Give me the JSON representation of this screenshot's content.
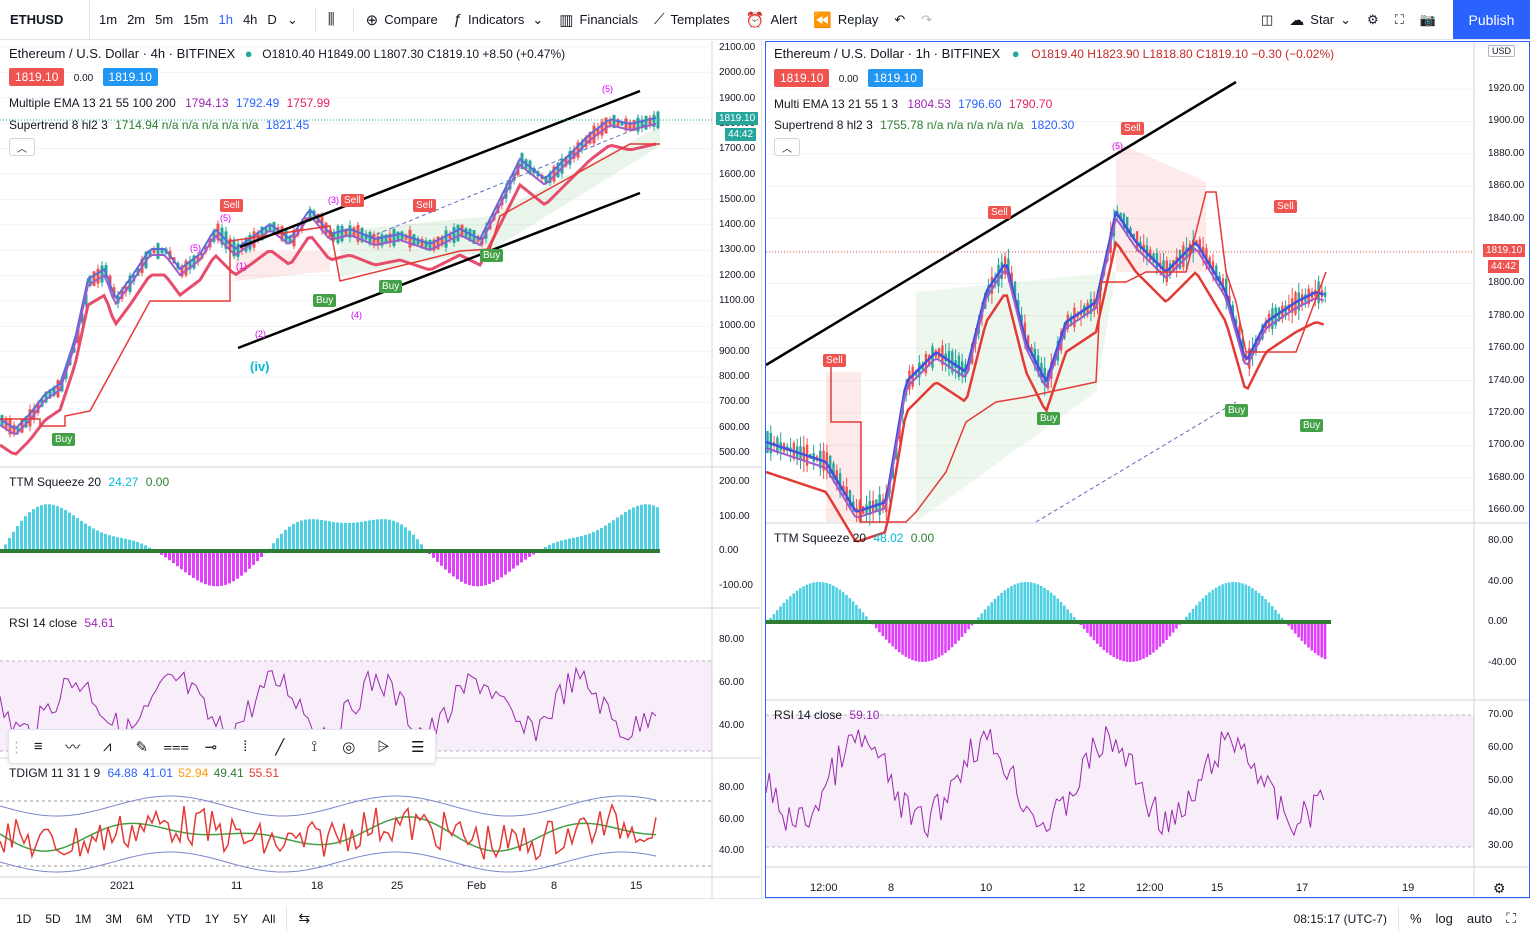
{
  "toolbar": {
    "symbol": "ETHUSD",
    "timeframes": [
      "1m",
      "2m",
      "5m",
      "15m",
      "1h",
      "4h",
      "D"
    ],
    "active_timeframe": "1h",
    "compare": "Compare",
    "indicators": "Indicators",
    "financials": "Financials",
    "templates": "Templates",
    "alert": "Alert",
    "replay": "Replay",
    "star": "Star",
    "publish": "Publish"
  },
  "left": {
    "title": "Ethereum / U.S. Dollar · 4h · BITFINEX",
    "ohlc": "O1810.40 H1849.00 L1807.30 C1819.10 +8.50 (+0.47%)",
    "bid": "1819.10",
    "spread": "0.00",
    "ask": "1819.10",
    "ema_label": "Multiple EMA 13 21 55 100 200",
    "ema_vals": [
      "1794.13",
      "1792.49",
      "1757.99"
    ],
    "st_label": "Supertrend 8 hl2 3",
    "st_vals": "1714.94  n/a  n/a  n/a  n/a  n/a",
    "st_last": "1821.45",
    "price_axis": [
      "2100.00",
      "2000.00",
      "1900.00",
      "1800.00",
      "1700.00",
      "1600.00",
      "1500.00",
      "1400.00",
      "1300.00",
      "1200.00",
      "1100.00",
      "1000.00",
      "900.00",
      "800.00",
      "700.00",
      "600.00",
      "500.00"
    ],
    "price_tag": "1819.10",
    "time_tag": "44:42",
    "ttm_label": "TTM Squeeze 20",
    "ttm_v1": "24.27",
    "ttm_v2": "0.00",
    "ttm_axis": [
      "200.00",
      "100.00",
      "0.00",
      "-100.00"
    ],
    "rsi_label": "RSI 14 close",
    "rsi_val": "54.61",
    "rsi_axis": [
      "80.00",
      "60.00",
      "40.00"
    ],
    "tdi_label": "TDIGM 11 31 1 9",
    "tdi_vals": [
      "64.88",
      "41.01",
      "52.94",
      "49.41",
      "55.51"
    ],
    "tdi_axis": [
      "80.00",
      "60.00",
      "40.00"
    ],
    "dates": [
      "2021",
      "11",
      "18",
      "25",
      "Feb",
      "8",
      "15"
    ],
    "wave_labels": [
      "(5)",
      "(iv)",
      "(1)",
      "(2)",
      "(3)",
      "(4)",
      "(5)",
      "(5)"
    ],
    "signals": [
      "Buy",
      "Sell",
      "Buy",
      "Buy",
      "Sell",
      "Sell",
      "Buy"
    ]
  },
  "right": {
    "title": "Ethereum / U.S. Dollar · 1h · BITFINEX",
    "ohlc": "O1819.40 H1823.90 L1818.80 C1819.10 −0.30 (−0.02%)",
    "bid": "1819.10",
    "spread": "0.00",
    "ask": "1819.10",
    "ema_label": "Multi EMA 13 21 55 1 3",
    "ema_vals": [
      "1804.53",
      "1796.60",
      "1790.70"
    ],
    "st_label": "Supertrend 8 hl2 3",
    "st_vals": "1755.78  n/a  n/a  n/a  n/a  n/a",
    "st_last": "1820.30",
    "currency": "USD",
    "price_axis": [
      "1920.00",
      "1900.00",
      "1880.00",
      "1860.00",
      "1840.00",
      "1820.00",
      "1800.00",
      "1780.00",
      "1760.00",
      "1740.00",
      "1720.00",
      "1700.00",
      "1680.00",
      "1660.00"
    ],
    "price_tag": "1819.10",
    "time_tag": "44:42",
    "ttm_label": "TTM Squeeze 20",
    "ttm_v1": "48.02",
    "ttm_v2": "0.00",
    "ttm_axis": [
      "80.00",
      "40.00",
      "0.00",
      "-40.00"
    ],
    "rsi_label": "RSI 14 close",
    "rsi_val": "59.10",
    "rsi_axis": [
      "70.00",
      "60.00",
      "50.00",
      "40.00",
      "30.00"
    ],
    "dates": [
      "12:00",
      "8",
      "10",
      "12",
      "12:00",
      "15",
      "17",
      "19"
    ],
    "signals": [
      "Sell",
      "Sell",
      "Buy",
      "Sell",
      "Buy",
      "Sell",
      "Buy"
    ],
    "wave_label": "(5)"
  },
  "bottom": {
    "ranges": [
      "1D",
      "5D",
      "1M",
      "3M",
      "6M",
      "YTD",
      "1Y",
      "5Y",
      "All"
    ],
    "clock": "08:15:17 (UTC-7)",
    "pct": "%",
    "log": "log",
    "auto": "auto"
  },
  "colors": {
    "accent": "#2962ff",
    "up": "#26a69a",
    "down": "#ef5350",
    "ema1": "#5b6bd8",
    "ema2": "#9c5dc9",
    "ema3": "#e74c6c",
    "rsi": "#9c27b0"
  }
}
